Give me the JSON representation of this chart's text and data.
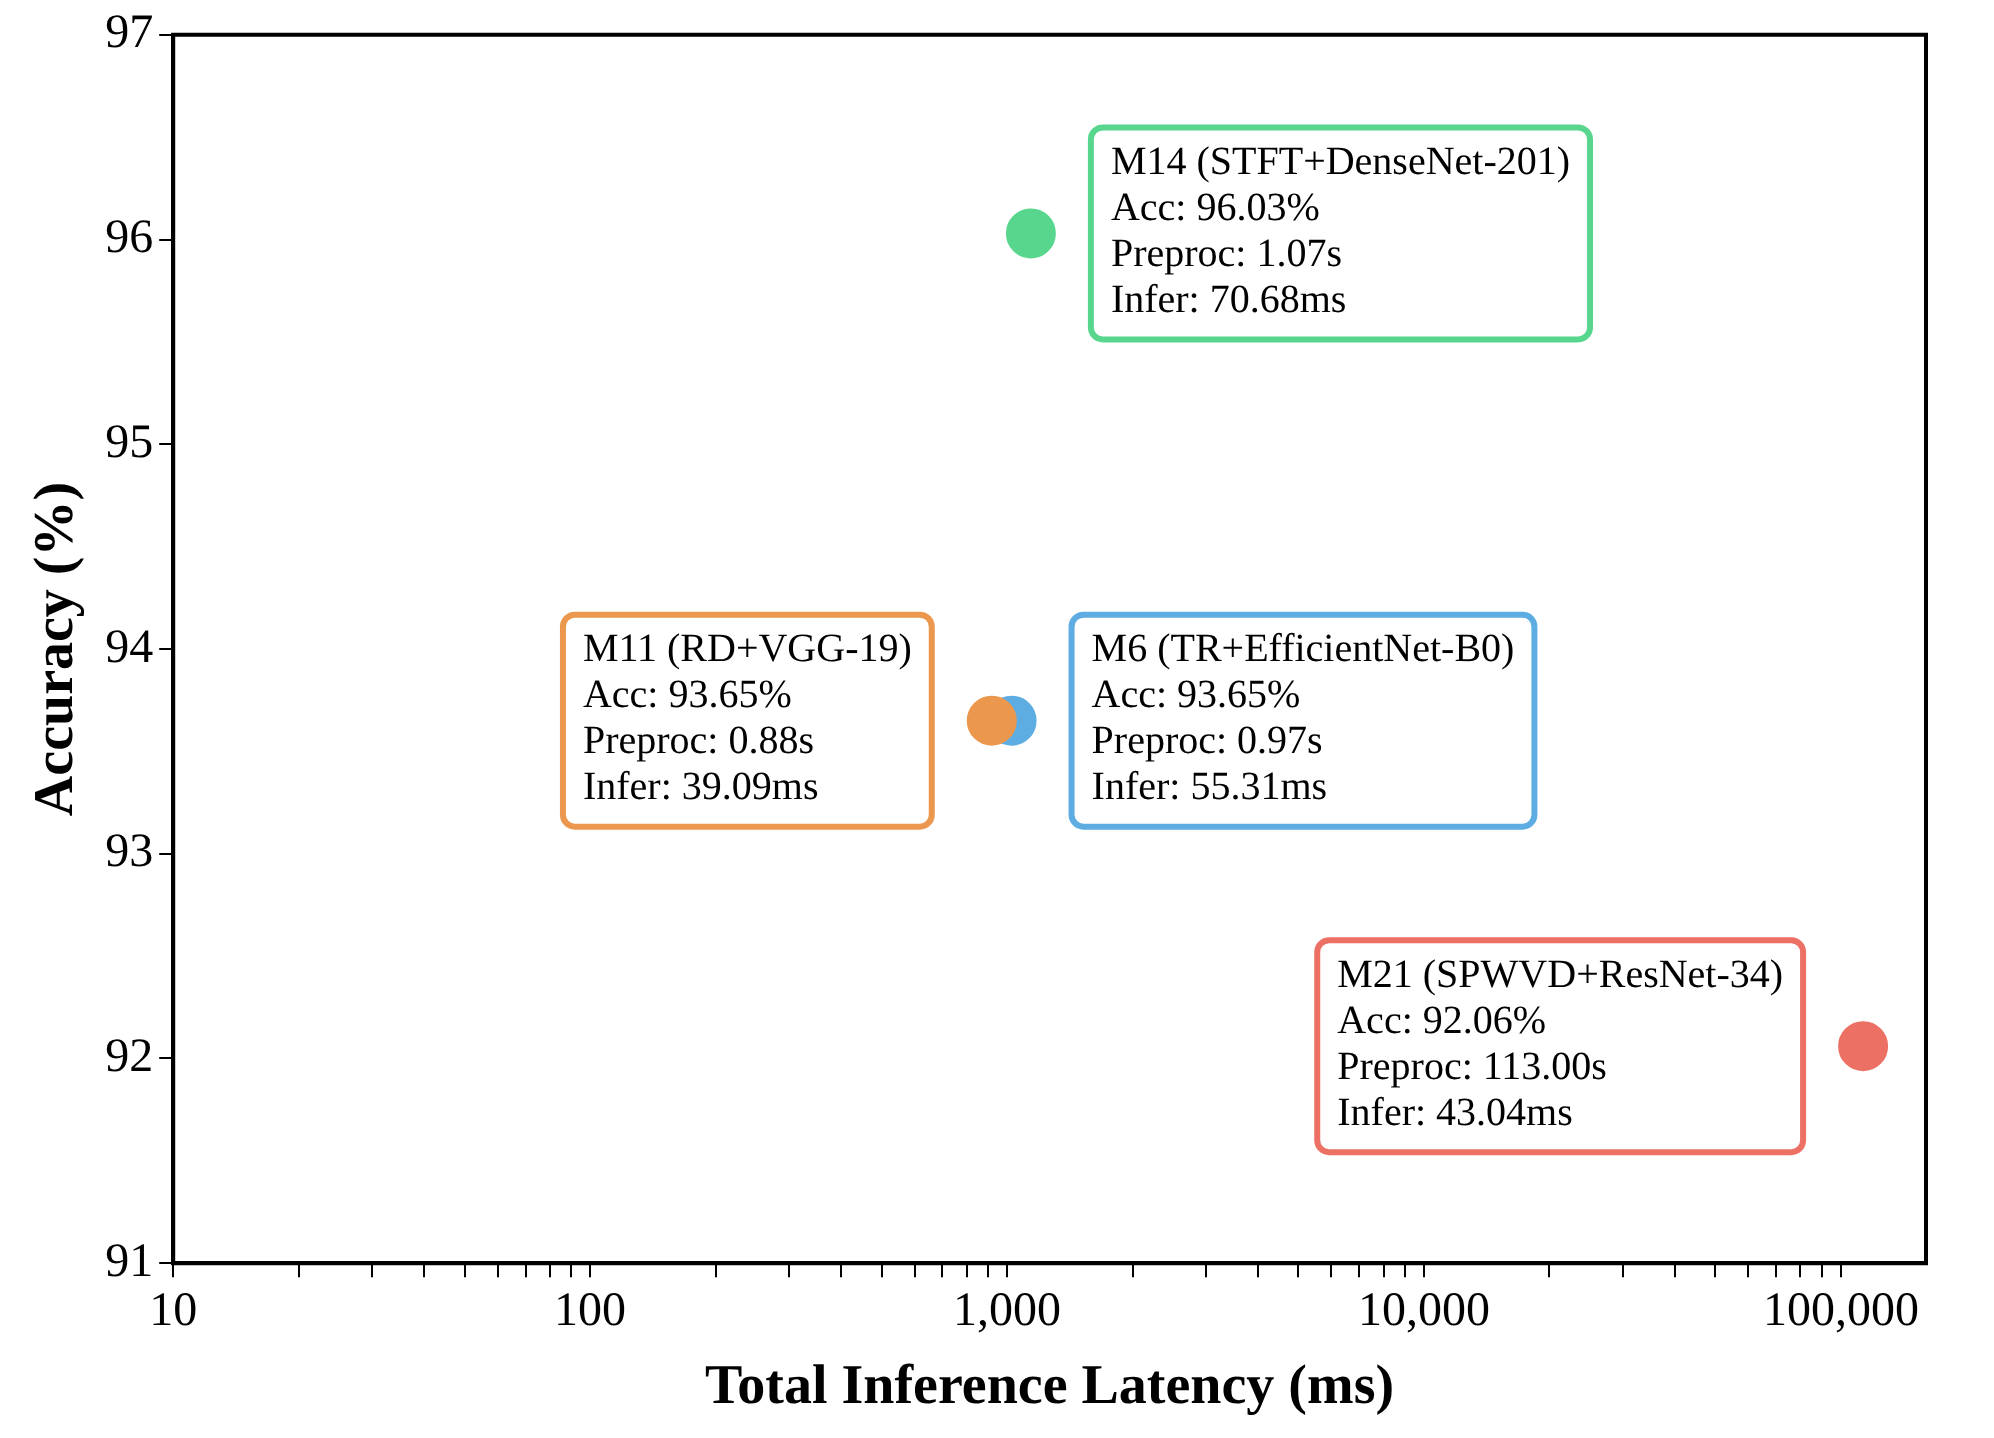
{
  "chart_data": {
    "type": "scatter",
    "xlabel": "Total Inference Latency (ms)",
    "ylabel": "Accuracy (%)",
    "log": "x",
    "grid": false,
    "legend": false,
    "marker": "circle",
    "x": [
      1140.68,
      919.09,
      1025.31,
      113043.04
    ],
    "values": [
      96.03,
      93.65,
      93.65,
      92.06
    ],
    "colors": [
      "#58d68d",
      "#eb984e",
      "#5dade2",
      "#ec7063"
    ],
    "xlim": [
      10,
      160000
    ],
    "xticks": [
      10,
      {
        "value": 20,
        "label": null
      },
      {
        "value": 30,
        "label": null
      },
      {
        "value": 40,
        "label": null
      },
      {
        "value": 50,
        "label": null
      },
      {
        "value": 60,
        "label": null
      },
      {
        "value": 70,
        "label": null
      },
      {
        "value": 80,
        "label": null
      },
      {
        "value": 90,
        "label": null
      },
      100,
      {
        "value": 200,
        "label": null
      },
      {
        "value": 300,
        "label": null
      },
      {
        "value": 400,
        "label": null
      },
      {
        "value": 500,
        "label": null
      },
      {
        "value": 600,
        "label": null
      },
      {
        "value": 700,
        "label": null
      },
      {
        "value": 800,
        "label": null
      },
      {
        "value": 900,
        "label": null
      },
      {
        "value": 1000,
        "label": "1,000"
      },
      {
        "value": 2000,
        "label": null
      },
      {
        "value": 3000,
        "label": null
      },
      {
        "value": 4000,
        "label": null
      },
      {
        "value": 5000,
        "label": null
      },
      {
        "value": 6000,
        "label": null
      },
      {
        "value": 7000,
        "label": null
      },
      {
        "value": 8000,
        "label": null
      },
      {
        "value": 9000,
        "label": null
      },
      {
        "value": 10000,
        "label": "10,000"
      },
      {
        "value": 20000,
        "label": null
      },
      {
        "value": 30000,
        "label": null
      },
      {
        "value": 40000,
        "label": null
      },
      {
        "value": 50000,
        "label": null
      },
      {
        "value": 60000,
        "label": null
      },
      {
        "value": 70000,
        "label": null
      },
      {
        "value": 80000,
        "label": null
      },
      {
        "value": 90000,
        "label": null
      },
      {
        "value": 100000,
        "label": "100,000"
      }
    ],
    "ylim": [
      91,
      97
    ],
    "yticks": [
      91,
      92,
      93,
      94,
      95,
      96,
      97
    ],
    "annotations": [
      {
        "text": "M14 (STFT+DenseNet-201)\nAcc: 96.03%\nPreproc: 1.07s\nInfer: 70.68ms",
        "x": 1140.68,
        "y": 96.03
      },
      {
        "text": "M11 (RD+VGG-19)\nAcc: 93.65%\nPreproc: 0.88s\nInfer: 39.09ms",
        "x": 919.09,
        "y": 93.65
      },
      {
        "text": "M6 (TR+EfficientNet-B0)\nAcc: 93.65%\nPreproc: 0.97s\nInfer: 55.31ms",
        "x": 1025.31,
        "y": 93.65
      },
      {
        "text": "M21 (SPWVD+ResNet-34)\nAcc: 92.06%\nPreproc: 113.00s\nInfer: 43.04ms",
        "x": 113043.04,
        "y": 92.06
      }
    ]
  }
}
